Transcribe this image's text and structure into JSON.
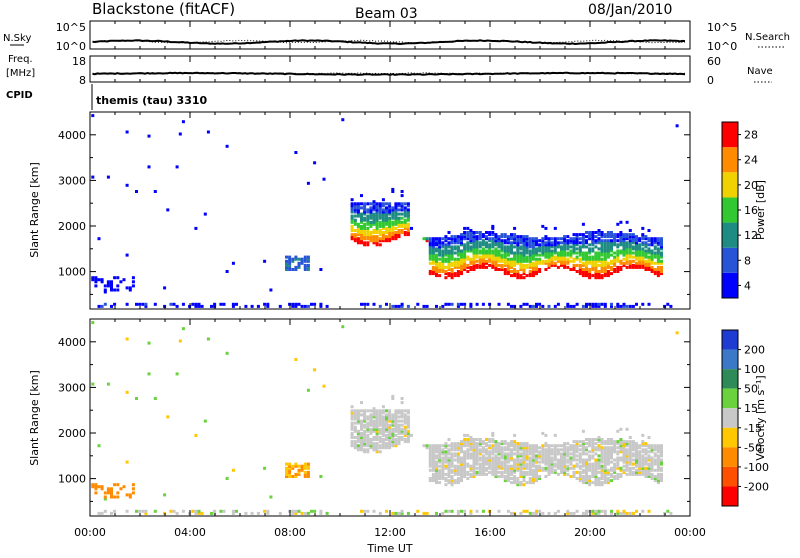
{
  "header": {
    "station": "Blackstone (fitACF)",
    "beam": "Beam 03",
    "date": "08/Jan/2010"
  },
  "top_panels": {
    "nsky_label": "N.Sky",
    "nsky_ticks": [
      "10^5",
      "10^0"
    ],
    "nsearch_label": "N.Search",
    "nsearch_ticks": [
      "10^5",
      "10^0"
    ],
    "freq_label_line1": "Freq.",
    "freq_label_line2": "[MHz]",
    "freq_ticks": [
      "18",
      "8"
    ],
    "nave_label": "Nave",
    "nave_ticks": [
      "60",
      "0"
    ],
    "cpid_label": "CPID",
    "cpid_value": "themis (tau) 3310"
  },
  "chart_data": [
    {
      "type": "heatmap",
      "title": "Power",
      "xlabel": "",
      "ylabel": "Slant Range [km]",
      "x_range": [
        "00:00",
        "24:00"
      ],
      "y_range": [
        180,
        4500
      ],
      "y_ticks": [
        1000,
        2000,
        3000,
        4000
      ],
      "colorbar": {
        "label": "Power [dB]",
        "ticks": [
          "4",
          "8",
          "12",
          "16",
          "20",
          "24",
          "28"
        ],
        "colors": [
          "#0000ff",
          "#2855d8",
          "#1e8c82",
          "#32c832",
          "#f0d200",
          "#ff8c00",
          "#ff0000"
        ]
      },
      "features": [
        {
          "name": "Blackstone low-range echoes",
          "t_start": 0.0,
          "t_end": 24.0,
          "range_km": [
            180,
            350
          ]
        },
        {
          "name": "Morning patch",
          "t_start": 7.7,
          "t_end": 8.7,
          "range_km": [
            1100,
            1300
          ]
        },
        {
          "name": "Ionospheric backscatter",
          "t_start": 10.4,
          "t_end": 22.8,
          "range_km": [
            900,
            2600
          ]
        }
      ]
    },
    {
      "type": "heatmap",
      "title": "Velocity",
      "xlabel": "Time UT",
      "ylabel": "Slant Range [km]",
      "x_range": [
        "00:00",
        "24:00"
      ],
      "x_ticks": [
        "00:00",
        "04:00",
        "08:00",
        "12:00",
        "16:00",
        "20:00",
        "00:00"
      ],
      "y_range": [
        180,
        4500
      ],
      "y_ticks": [
        1000,
        2000,
        3000,
        4000
      ],
      "colorbar": {
        "label": "Velocity [m s⁻¹]",
        "ticks": [
          "200",
          "100",
          "50",
          "15",
          "-15",
          "-50",
          "-100",
          "-200"
        ],
        "colors": [
          "#1e3cd2",
          "#3c78c8",
          "#2e8b57",
          "#6ad23c",
          "#c8c8c8",
          "#ffc800",
          "#ff8c00",
          "#ff5000",
          "#ff0000"
        ]
      },
      "features": [
        {
          "name": "Ground scatter band",
          "t_start": 10.4,
          "t_end": 22.8,
          "range_km": [
            1200,
            2600
          ],
          "velocity": "-15..15"
        },
        {
          "name": "Morning patch",
          "t_start": 7.7,
          "t_end": 8.7,
          "range_km": [
            1100,
            1300
          ],
          "velocity": "-50..-100"
        }
      ]
    }
  ]
}
